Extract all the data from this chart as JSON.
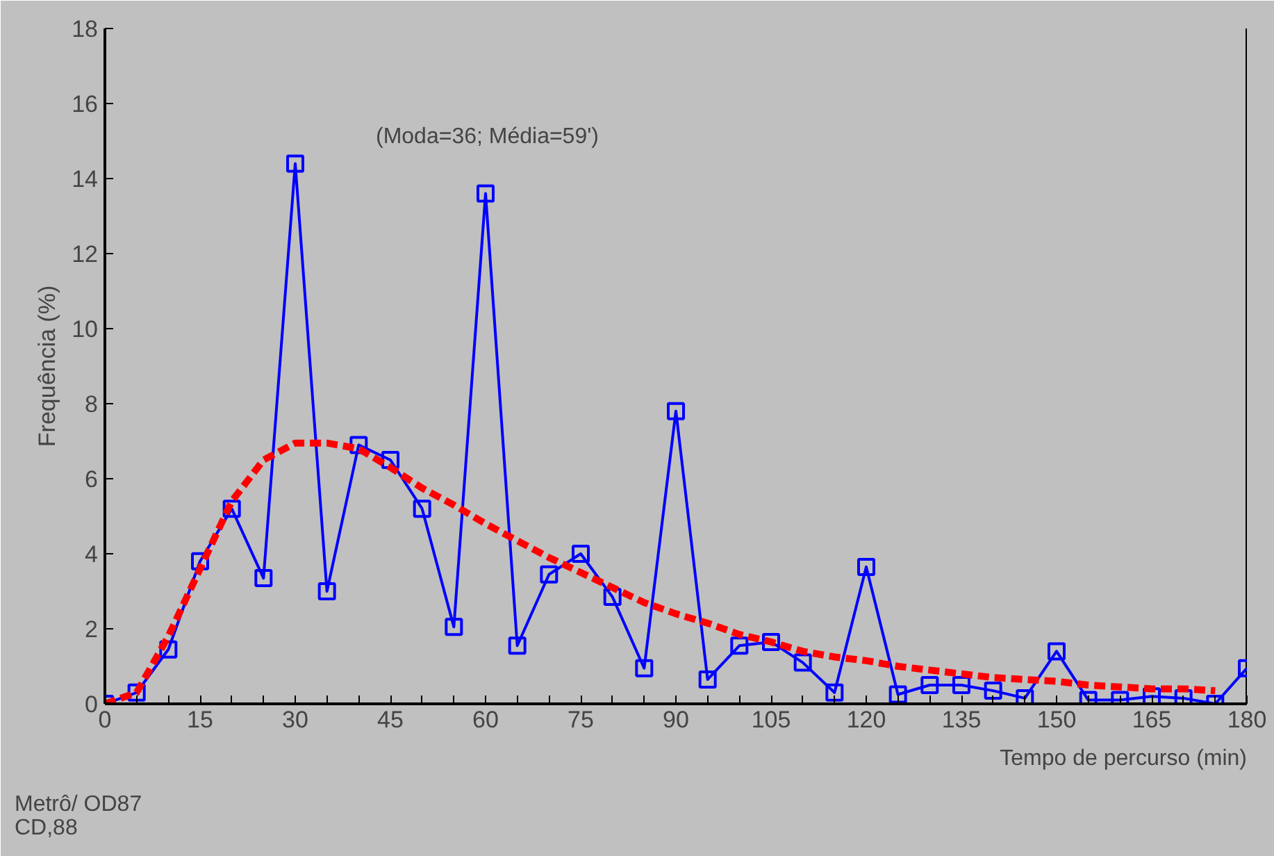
{
  "chart_data": {
    "type": "line",
    "xlabel": "Tempo de percurso (min)",
    "ylabel": "Frequência (%)",
    "annotations": [
      "(Moda=36; Média=59')",
      "Metrô/ OD87\nCD,88"
    ],
    "xlim": [
      0,
      180
    ],
    "xticks": [
      0,
      15,
      30,
      45,
      60,
      75,
      90,
      105,
      120,
      135,
      150,
      165,
      180
    ],
    "ylim": [
      0,
      18
    ],
    "yticks": [
      0,
      2,
      4,
      6,
      8,
      10,
      12,
      14,
      16,
      18
    ],
    "grid": false,
    "series": [
      {
        "color": "#0000ff",
        "marker": "square",
        "line_style": "solid",
        "x": [
          0,
          5,
          10,
          15,
          20,
          25,
          30,
          35,
          40,
          45,
          50,
          55,
          60,
          65,
          70,
          75,
          80,
          85,
          90,
          95,
          100,
          105,
          110,
          115,
          120,
          125,
          130,
          135,
          140,
          145,
          150,
          155,
          160,
          165,
          170,
          175,
          180
        ],
        "values": [
          0,
          0.3,
          1.45,
          3.8,
          5.2,
          3.35,
          14.4,
          3.0,
          6.9,
          6.5,
          5.2,
          2.05,
          13.6,
          1.55,
          3.45,
          4.0,
          2.85,
          0.95,
          7.8,
          0.65,
          1.55,
          1.65,
          1.1,
          0.3,
          3.65,
          0.25,
          0.5,
          0.5,
          0.35,
          0.15,
          1.4,
          0.1,
          0.1,
          0.2,
          0.15,
          0.0,
          0.95
        ]
      },
      {
        "color": "#ff0000",
        "marker": "none",
        "line_style": "dashed",
        "x": [
          0,
          5,
          10,
          15,
          20,
          25,
          30,
          35,
          40,
          45,
          50,
          55,
          60,
          65,
          70,
          75,
          80,
          85,
          90,
          95,
          100,
          105,
          110,
          115,
          120,
          125,
          130,
          135,
          140,
          145,
          150,
          155,
          160,
          165,
          170,
          175
        ],
        "values": [
          0,
          0.3,
          1.8,
          3.6,
          5.4,
          6.5,
          6.95,
          6.95,
          6.8,
          6.3,
          5.75,
          5.3,
          4.8,
          4.35,
          3.9,
          3.5,
          3.1,
          2.7,
          2.4,
          2.15,
          1.85,
          1.65,
          1.4,
          1.25,
          1.15,
          1.0,
          0.9,
          0.8,
          0.7,
          0.65,
          0.6,
          0.5,
          0.45,
          0.4,
          0.4,
          0.35
        ]
      }
    ]
  }
}
